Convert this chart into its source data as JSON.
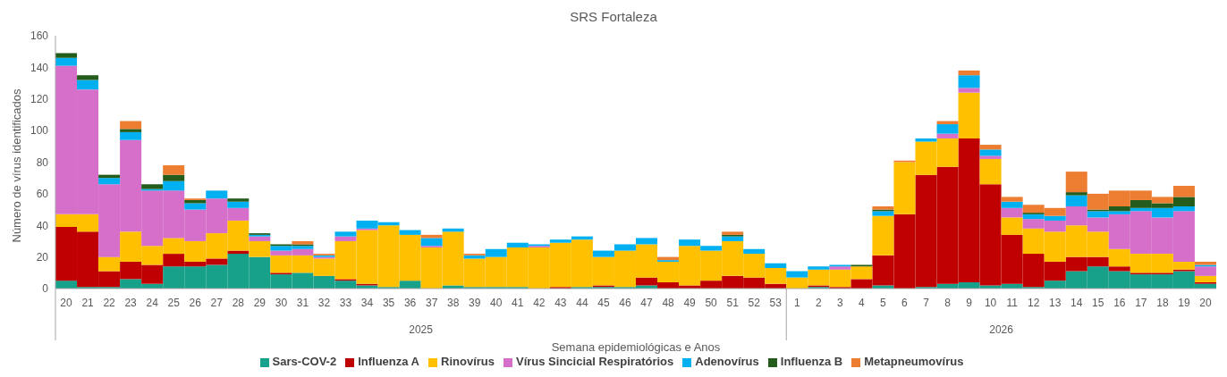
{
  "chart_data": {
    "type": "bar",
    "title": "SRS Fortaleza",
    "xlabel": "Semana epidemiológicas e Anos",
    "ylabel": "Número de vírus identificados",
    "annotations": [
      "2025",
      "2026"
    ],
    "categories": [
      "20",
      "21",
      "22",
      "23",
      "24",
      "25",
      "26",
      "27",
      "28",
      "29",
      "30",
      "31",
      "32",
      "33",
      "34",
      "35",
      "36",
      "37",
      "38",
      "39",
      "40",
      "41",
      "42",
      "43",
      "44",
      "45",
      "46",
      "47",
      "48",
      "49",
      "50",
      "51",
      "52",
      "53",
      "1",
      "2",
      "3",
      "4",
      "5",
      "6",
      "7",
      "8",
      "9",
      "10",
      "11",
      "12",
      "13",
      "14",
      "15",
      "16",
      "17",
      "18",
      "19",
      "20"
    ],
    "stacked": true,
    "ylim": [
      0,
      160
    ],
    "yticks": [
      0,
      20,
      40,
      60,
      80,
      100,
      120,
      140,
      160
    ],
    "legend": "bottom",
    "series": [
      {
        "name": "Sars-COV-2",
        "color": "#17a08a",
        "values": [
          5,
          1,
          1,
          6,
          3,
          14,
          14,
          15,
          22,
          20,
          9,
          10,
          8,
          5,
          2,
          1,
          5,
          0,
          2,
          1,
          1,
          1,
          0,
          0,
          1,
          1,
          1,
          2,
          0,
          0,
          0,
          0,
          0,
          0,
          0,
          1,
          0,
          0,
          2,
          0,
          1,
          3,
          4,
          2,
          3,
          1,
          5,
          11,
          14,
          11,
          9,
          9,
          11,
          3
        ]
      },
      {
        "name": "Influenza A",
        "color": "#c00000",
        "values": [
          34,
          35,
          10,
          11,
          12,
          8,
          3,
          4,
          2,
          0,
          1,
          0,
          0,
          1,
          1,
          0,
          0,
          0,
          0,
          0,
          0,
          0,
          0,
          1,
          0,
          1,
          0,
          5,
          4,
          2,
          5,
          8,
          7,
          3,
          0,
          1,
          1,
          6,
          19,
          47,
          71,
          74,
          91,
          64,
          31,
          21,
          12,
          9,
          6,
          3,
          1,
          1,
          1,
          1
        ]
      },
      {
        "name": "Rinovírus",
        "color": "#ffc000",
        "values": [
          8,
          11,
          9,
          19,
          12,
          10,
          13,
          16,
          19,
          10,
          11,
          11,
          11,
          24,
          34,
          39,
          29,
          26,
          34,
          18,
          19,
          25,
          26,
          28,
          30,
          18,
          23,
          21,
          13,
          25,
          19,
          22,
          15,
          10,
          7,
          10,
          11,
          8,
          25,
          33,
          21,
          18,
          29,
          16,
          11,
          16,
          19,
          20,
          16,
          11,
          12,
          12,
          5,
          4
        ]
      },
      {
        "name": "Vírus Sincicial Respiratórios",
        "color": "#d66fc9",
        "values": [
          94,
          79,
          46,
          58,
          35,
          30,
          20,
          22,
          8,
          3,
          3,
          4,
          1,
          3,
          1,
          0,
          0,
          1,
          0,
          0,
          0,
          0,
          1,
          0,
          0,
          0,
          0,
          0,
          0,
          0,
          0,
          0,
          0,
          0,
          0,
          0,
          2,
          0,
          0,
          0,
          0,
          3,
          3,
          2,
          6,
          6,
          7,
          12,
          9,
          22,
          27,
          23,
          32,
          6
        ]
      },
      {
        "name": "Adenovírus",
        "color": "#00b0f0",
        "values": [
          5,
          6,
          4,
          5,
          1,
          6,
          4,
          5,
          4,
          1,
          3,
          2,
          1,
          3,
          5,
          2,
          3,
          5,
          2,
          2,
          5,
          3,
          1,
          2,
          2,
          4,
          4,
          4,
          1,
          4,
          3,
          3,
          3,
          3,
          4,
          2,
          1,
          0,
          3,
          0,
          2,
          6,
          8,
          4,
          4,
          3,
          3,
          7,
          4,
          2,
          2,
          6,
          3,
          1
        ]
      },
      {
        "name": "Influenza B",
        "color": "#245c1c",
        "values": [
          3,
          3,
          2,
          2,
          3,
          4,
          2,
          0,
          2,
          1,
          1,
          1,
          0,
          0,
          0,
          0,
          0,
          0,
          0,
          0,
          0,
          0,
          0,
          0,
          0,
          0,
          0,
          0,
          0,
          0,
          0,
          1,
          0,
          0,
          0,
          0,
          0,
          1,
          1,
          0,
          0,
          0,
          0,
          0,
          0,
          1,
          0,
          2,
          1,
          3,
          5,
          3,
          6,
          0
        ]
      },
      {
        "name": "Metapneumovírus",
        "color": "#ed7d31",
        "values": [
          0,
          0,
          0,
          5,
          0,
          6,
          1,
          0,
          0,
          0,
          0,
          2,
          1,
          0,
          0,
          0,
          0,
          2,
          0,
          1,
          0,
          0,
          0,
          0,
          0,
          0,
          0,
          0,
          2,
          0,
          0,
          2,
          0,
          0,
          0,
          0,
          0,
          0,
          2,
          1,
          0,
          2,
          3,
          3,
          3,
          5,
          5,
          13,
          10,
          10,
          6,
          4,
          7,
          2
        ]
      }
    ]
  }
}
